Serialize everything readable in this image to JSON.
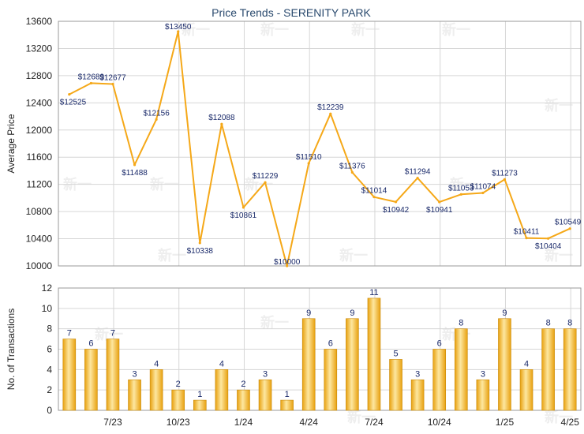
{
  "title": "Price Trends - SERENITY PARK",
  "watermark": "新一",
  "colors": {
    "line": "#f5a818",
    "bar_light": "#fde7a0",
    "bar_dark": "#e8a10f",
    "bar_edge": "#c98a0a",
    "grid": "#d6d6d6",
    "frame": "#9a9a9a"
  },
  "chart_data": [
    {
      "type": "line",
      "ylabel": "Average Price",
      "ylim": [
        10000,
        13600
      ],
      "yticks": [
        10000,
        10400,
        10800,
        11200,
        11600,
        12000,
        12400,
        12800,
        13200,
        13600
      ],
      "grid": true,
      "label_prefix": "$",
      "series": [
        {
          "values": [
            12525,
            12689,
            12677,
            11488,
            12156,
            13450,
            10338,
            12088,
            10861,
            11229,
            10000,
            11510,
            12239,
            11376,
            11014,
            10942,
            11294,
            10941,
            11053,
            11074,
            11273,
            10411,
            10404,
            10549
          ]
        }
      ]
    },
    {
      "type": "bar",
      "ylabel": "No. of Transactions",
      "ylim": [
        0,
        12
      ],
      "yticks": [
        0,
        2,
        4,
        6,
        8,
        10,
        12
      ],
      "grid": true,
      "values": [
        7,
        6,
        7,
        3,
        4,
        2,
        1,
        4,
        2,
        3,
        1,
        9,
        6,
        9,
        11,
        5,
        3,
        6,
        8,
        3,
        9,
        4,
        8,
        8
      ]
    }
  ],
  "x_axis": {
    "ticks": [
      {
        "index": 2,
        "label": "7/23"
      },
      {
        "index": 5,
        "label": "10/23"
      },
      {
        "index": 8,
        "label": "1/24"
      },
      {
        "index": 11,
        "label": "4/24"
      },
      {
        "index": 14,
        "label": "7/24"
      },
      {
        "index": 17,
        "label": "10/24"
      },
      {
        "index": 20,
        "label": "1/25"
      },
      {
        "index": 23,
        "label": "4/25"
      }
    ]
  }
}
